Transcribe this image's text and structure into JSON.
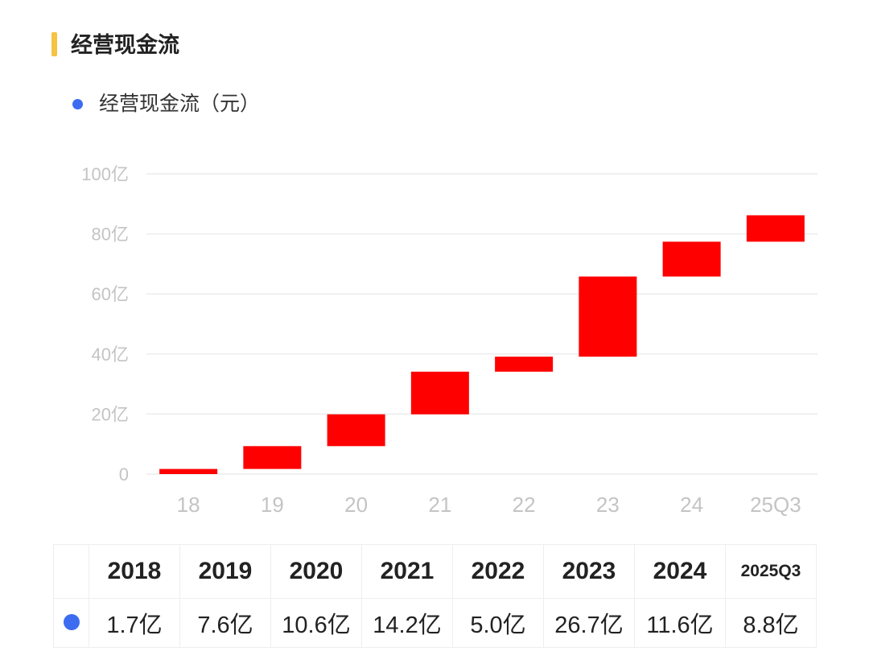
{
  "header": {
    "title": "经营现金流"
  },
  "legend": {
    "label": "经营现金流（元）",
    "color": "#3d6cf0"
  },
  "colors": {
    "bar": "#ff0000",
    "accent": "#f6c342",
    "grid": "#ececec",
    "axis_text": "#c4c4c4"
  },
  "chart_data": {
    "type": "bar",
    "subtype": "waterfall",
    "title": "经营现金流",
    "series": [
      {
        "name": "经营现金流（元）",
        "values": [
          1.7,
          7.6,
          10.6,
          14.2,
          5.0,
          26.7,
          11.6,
          8.8
        ]
      }
    ],
    "categories": [
      "18",
      "19",
      "20",
      "21",
      "22",
      "23",
      "24",
      "25Q3"
    ],
    "values": [
      1.7,
      7.6,
      10.6,
      14.2,
      5.0,
      26.7,
      11.6,
      8.8
    ],
    "unit": "亿",
    "ylim": [
      0,
      100
    ],
    "yticks": [
      0,
      20,
      40,
      60,
      80,
      100
    ],
    "ytick_labels": [
      "0",
      "20亿",
      "40亿",
      "60亿",
      "80亿",
      "100亿"
    ],
    "grid": true
  },
  "table": {
    "years": [
      "2018",
      "2019",
      "2020",
      "2021",
      "2022",
      "2023",
      "2024",
      "2025Q3"
    ],
    "values": [
      "1.7亿",
      "7.6亿",
      "10.6亿",
      "14.2亿",
      "5.0亿",
      "26.7亿",
      "11.6亿",
      "8.8亿"
    ]
  }
}
